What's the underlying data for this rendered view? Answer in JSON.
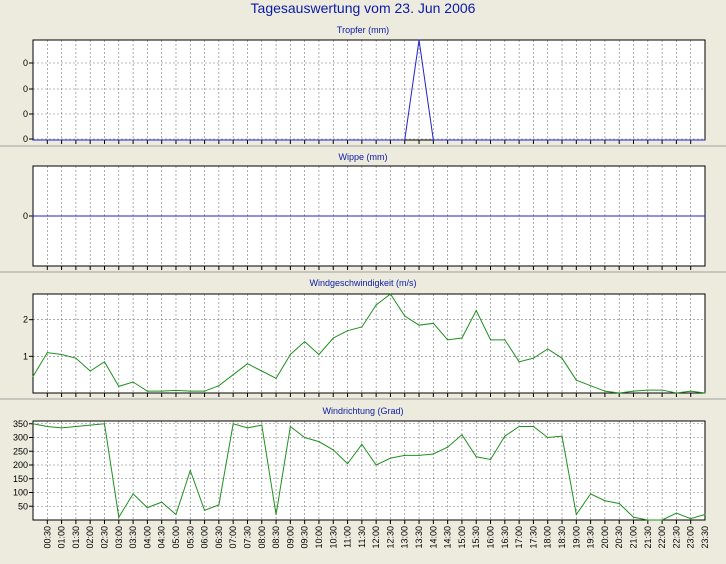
{
  "page": {
    "title": "Tagesauswertung vom 23. Jun 2006"
  },
  "colors": {
    "background": "#ecebde",
    "plot_bg": "#ffffff",
    "grid": "#777777",
    "blue": "#2222cc",
    "green": "#209020",
    "title_blue": "#0a1aa6"
  },
  "chart_data": [
    {
      "type": "line",
      "title": "Tropfer (mm)",
      "x": [
        "00:00",
        "00:30",
        "01:00",
        "01:30",
        "02:00",
        "02:30",
        "03:00",
        "03:30",
        "04:00",
        "04:30",
        "05:00",
        "05:30",
        "06:00",
        "06:30",
        "07:00",
        "07:30",
        "08:00",
        "08:30",
        "09:00",
        "09:30",
        "10:00",
        "10:30",
        "11:00",
        "11:30",
        "12:00",
        "12:30",
        "13:00",
        "13:30",
        "14:00",
        "14:30",
        "15:00",
        "15:30",
        "16:00",
        "16:30",
        "17:00",
        "17:30",
        "18:00",
        "18:30",
        "19:00",
        "19:30",
        "20:00",
        "20:30",
        "21:00",
        "21:30",
        "22:00",
        "22:30",
        "23:00",
        "23:30"
      ],
      "y_tick_labels": [
        "0",
        "0",
        "0",
        "0"
      ],
      "ylim": [
        0,
        4
      ],
      "grid": true,
      "series": [
        {
          "color": "#2222cc",
          "values": [
            0,
            0,
            0,
            0,
            0,
            0,
            0,
            0,
            0,
            0,
            0,
            0,
            0,
            0,
            0,
            0,
            0,
            0,
            0,
            0,
            0,
            0,
            0,
            0,
            0,
            0,
            0,
            4,
            0,
            0,
            0,
            0,
            0,
            0,
            0,
            0,
            0,
            0,
            0,
            0,
            0,
            0,
            0,
            0,
            0,
            0,
            0,
            0
          ]
        }
      ]
    },
    {
      "type": "line",
      "title": "Wippe (mm)",
      "x": [
        "00:00",
        "00:30",
        "01:00",
        "01:30",
        "02:00",
        "02:30",
        "03:00",
        "03:30",
        "04:00",
        "04:30",
        "05:00",
        "05:30",
        "06:00",
        "06:30",
        "07:00",
        "07:30",
        "08:00",
        "08:30",
        "09:00",
        "09:30",
        "10:00",
        "10:30",
        "11:00",
        "11:30",
        "12:00",
        "12:30",
        "13:00",
        "13:30",
        "14:00",
        "14:30",
        "15:00",
        "15:30",
        "16:00",
        "16:30",
        "17:00",
        "17:30",
        "18:00",
        "18:30",
        "19:00",
        "19:30",
        "20:00",
        "20:30",
        "21:00",
        "21:30",
        "22:00",
        "22:30",
        "23:00",
        "23:30"
      ],
      "y_tick_labels": [
        "0"
      ],
      "ylim": [
        -1,
        1
      ],
      "grid": true,
      "series": [
        {
          "color": "#2222cc",
          "values": [
            0,
            0,
            0,
            0,
            0,
            0,
            0,
            0,
            0,
            0,
            0,
            0,
            0,
            0,
            0,
            0,
            0,
            0,
            0,
            0,
            0,
            0,
            0,
            0,
            0,
            0,
            0,
            0,
            0,
            0,
            0,
            0,
            0,
            0,
            0,
            0,
            0,
            0,
            0,
            0,
            0,
            0,
            0,
            0,
            0,
            0,
            0,
            0
          ]
        }
      ]
    },
    {
      "type": "line",
      "title": "Windgeschwindigkeit (m/s)",
      "x": [
        "00:00",
        "00:30",
        "01:00",
        "01:30",
        "02:00",
        "02:30",
        "03:00",
        "03:30",
        "04:00",
        "04:30",
        "05:00",
        "05:30",
        "06:00",
        "06:30",
        "07:00",
        "07:30",
        "08:00",
        "08:30",
        "09:00",
        "09:30",
        "10:00",
        "10:30",
        "11:00",
        "11:30",
        "12:00",
        "12:30",
        "13:00",
        "13:30",
        "14:00",
        "14:30",
        "15:00",
        "15:30",
        "16:00",
        "16:30",
        "17:00",
        "17:30",
        "18:00",
        "18:30",
        "19:00",
        "19:30",
        "20:00",
        "20:30",
        "21:00",
        "21:30",
        "22:00",
        "22:30",
        "23:00",
        "23:30"
      ],
      "y_tick_labels": [
        "1",
        "2"
      ],
      "y_ticks": [
        1,
        2
      ],
      "ylim": [
        0,
        2.7
      ],
      "grid": true,
      "series": [
        {
          "color": "#209020",
          "values": [
            0.45,
            1.1,
            1.05,
            0.95,
            0.6,
            0.85,
            0.18,
            0.3,
            0.05,
            0.05,
            0.07,
            0.05,
            0.05,
            0.2,
            0.5,
            0.8,
            0.6,
            0.4,
            1.05,
            1.4,
            1.05,
            1.5,
            1.7,
            1.8,
            2.4,
            2.7,
            2.1,
            1.85,
            1.9,
            1.45,
            1.5,
            2.25,
            1.45,
            1.45,
            0.85,
            0.95,
            1.2,
            0.95,
            0.35,
            0.2,
            0.05,
            0.0,
            0.05,
            0.08,
            0.08,
            0.0,
            0.05,
            0.0
          ]
        }
      ]
    },
    {
      "type": "line",
      "title": "Windrichtung (Grad)",
      "x": [
        "00:00",
        "00:30",
        "01:00",
        "01:30",
        "02:00",
        "02:30",
        "03:00",
        "03:30",
        "04:00",
        "04:30",
        "05:00",
        "05:30",
        "06:00",
        "06:30",
        "07:00",
        "07:30",
        "08:00",
        "08:30",
        "09:00",
        "09:30",
        "10:00",
        "10:30",
        "11:00",
        "11:30",
        "12:00",
        "12:30",
        "13:00",
        "13:30",
        "14:00",
        "14:30",
        "15:00",
        "15:30",
        "16:00",
        "16:30",
        "17:00",
        "17:30",
        "18:00",
        "18:30",
        "19:00",
        "19:30",
        "20:00",
        "20:30",
        "21:00",
        "21:30",
        "22:00",
        "22:30",
        "23:00",
        "23:30"
      ],
      "x_tick_labels": [
        "00:30",
        "01:00",
        "01:30",
        "02:00",
        "02:30",
        "03:00",
        "03:30",
        "04:00",
        "04:30",
        "05:00",
        "05:30",
        "06:00",
        "06:30",
        "07:00",
        "07:30",
        "08:00",
        "08:30",
        "09:00",
        "09:30",
        "10:00",
        "10:30",
        "11:00",
        "11:30",
        "12:00",
        "12:30",
        "13:00",
        "13:30",
        "14:00",
        "14:30",
        "15:00",
        "15:30",
        "16:00",
        "16:30",
        "17:00",
        "17:30",
        "18:00",
        "18:30",
        "19:00",
        "19:30",
        "20:00",
        "20:30",
        "21:00",
        "21:30",
        "22:00",
        "22:30",
        "23:00",
        "23:30"
      ],
      "y_tick_labels": [
        "50",
        "100",
        "150",
        "200",
        "250",
        "300",
        "350"
      ],
      "y_ticks": [
        50,
        100,
        150,
        200,
        250,
        300,
        350
      ],
      "ylim": [
        0,
        360
      ],
      "grid": true,
      "series": [
        {
          "color": "#209020",
          "values": [
            350,
            340,
            335,
            340,
            345,
            350,
            10,
            95,
            45,
            65,
            20,
            180,
            35,
            55,
            350,
            335,
            345,
            20,
            340,
            300,
            285,
            255,
            205,
            275,
            200,
            225,
            235,
            235,
            240,
            265,
            310,
            230,
            220,
            305,
            340,
            340,
            300,
            305,
            20,
            95,
            70,
            60,
            10,
            0,
            0,
            25,
            5,
            20
          ]
        }
      ]
    }
  ]
}
